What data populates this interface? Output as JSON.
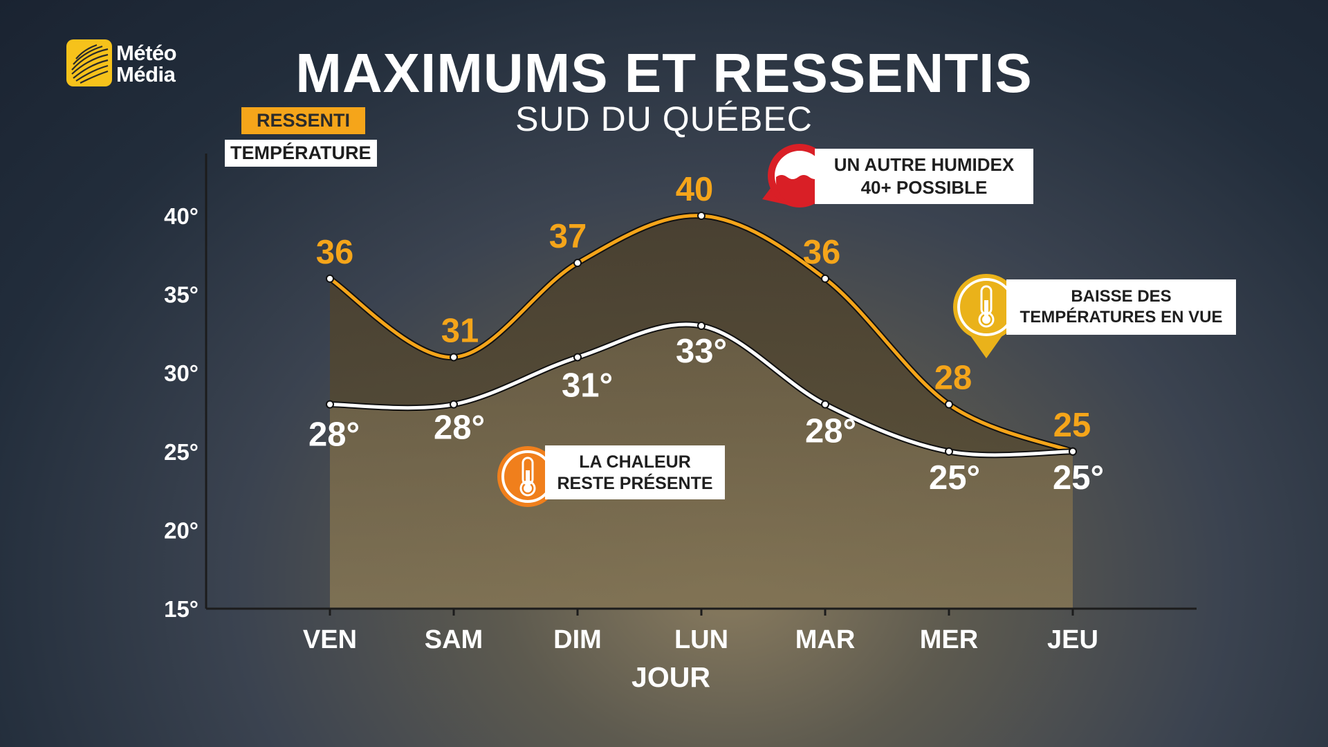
{
  "brand": {
    "line1": "Météo",
    "line2": "Média",
    "icon": "globe-icon",
    "color": "#f6c21b"
  },
  "title": "MAXIMUMS ET RESSENTIS",
  "subtitle": "SUD DU QUÉBEC",
  "legend": {
    "ressenti": "RESSENTI",
    "temperature": "TEMPÉRATURE"
  },
  "callouts": {
    "chaleur": {
      "line1": "LA CHALEUR",
      "line2": "RESTE PRÉSENTE",
      "icon": "thermometer-icon",
      "color": "#f07f1c"
    },
    "humidex": {
      "line1": "UN AUTRE HUMIDEX",
      "line2": "40+ POSSIBLE",
      "icon": "humidex-wave-icon",
      "color": "#d91f26"
    },
    "baisse": {
      "line1": "BAISSE DES",
      "line2": "TEMPÉRATURES EN VUE",
      "icon": "thermometer-icon",
      "color": "#eab21a"
    }
  },
  "colors": {
    "ressenti": "#f5a51a",
    "temperature": "#ffffff"
  },
  "chart_data": {
    "type": "area",
    "xlabel": "JOUR",
    "ylabel": "",
    "ylim": [
      15,
      40
    ],
    "yticks": [
      "15°",
      "20°",
      "25°",
      "30°",
      "35°",
      "40°"
    ],
    "categories": [
      "VEN",
      "SAM",
      "DIM",
      "LUN",
      "MAR",
      "MER",
      "JEU"
    ],
    "series": [
      {
        "name": "RESSENTI",
        "values": [
          36,
          31,
          37,
          40,
          36,
          28,
          25
        ],
        "labels": [
          "36",
          "31",
          "37",
          "40",
          "36",
          "28",
          "25"
        ]
      },
      {
        "name": "TEMPÉRATURE",
        "values": [
          28,
          28,
          31,
          33,
          28,
          25,
          25
        ],
        "labels": [
          "28°",
          "28°",
          "31°",
          "33°",
          "28°",
          "25°",
          "25°"
        ]
      }
    ],
    "grid": false
  }
}
